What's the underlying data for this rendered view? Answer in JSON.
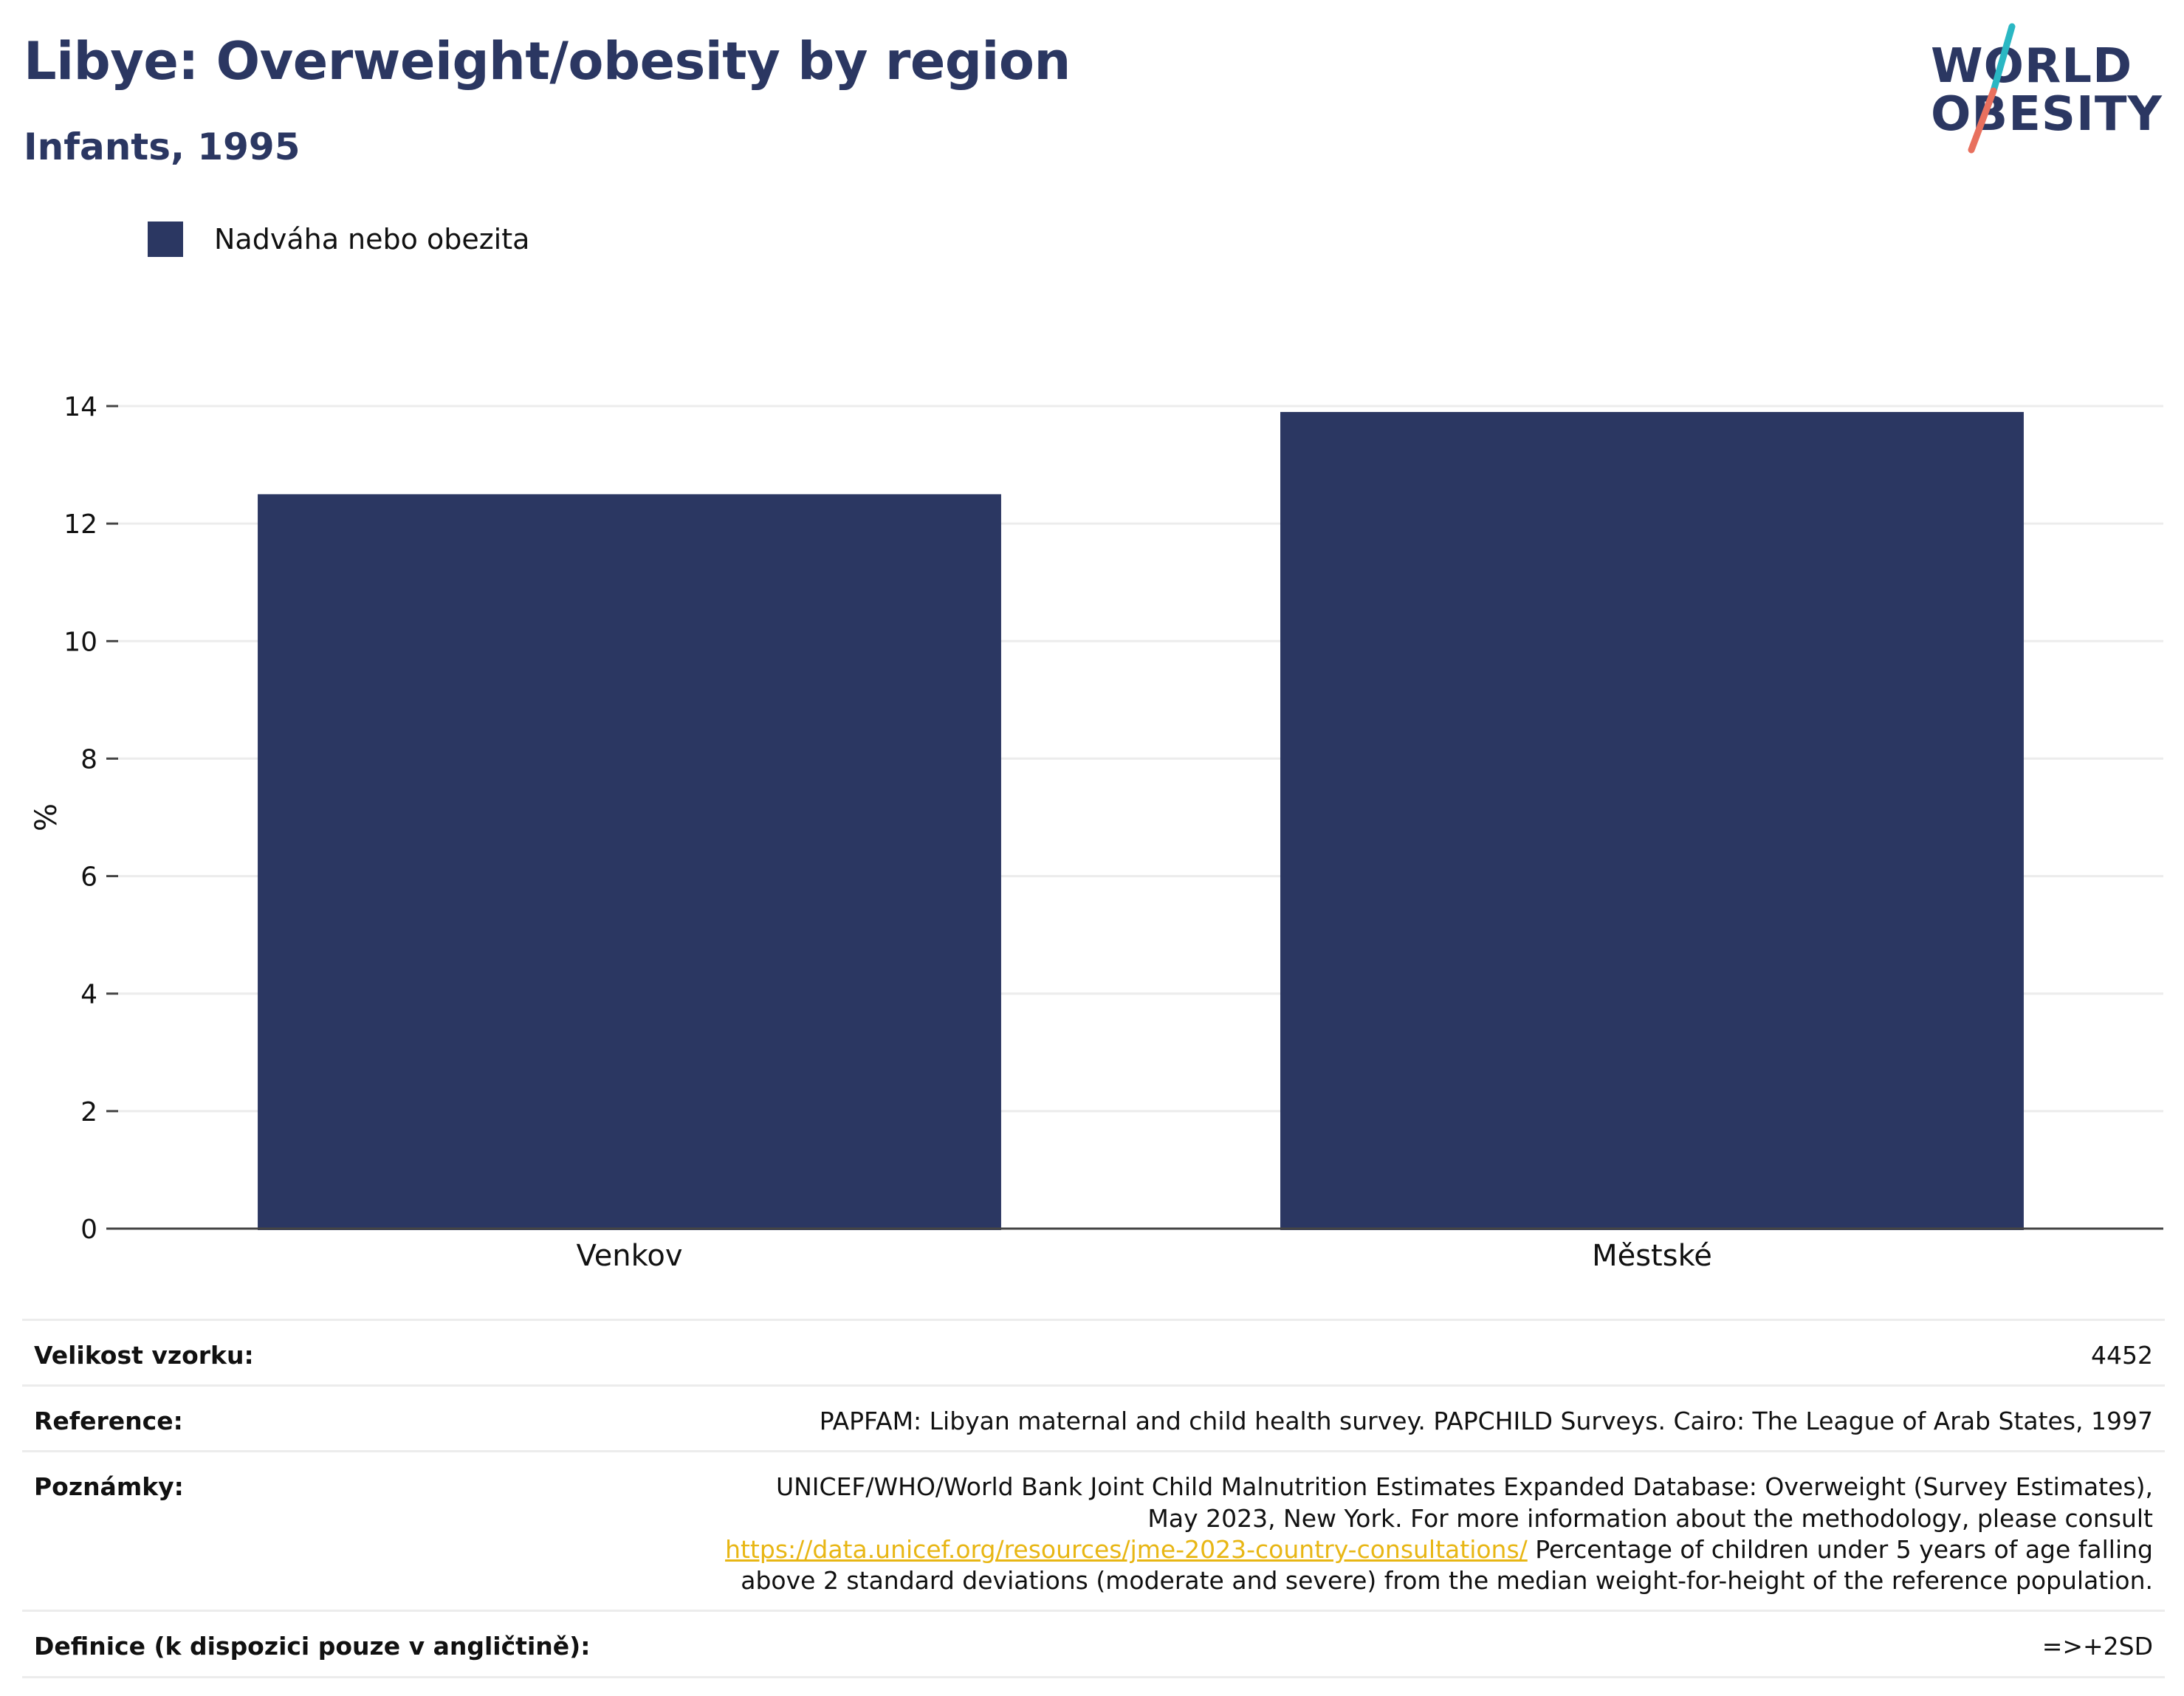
{
  "header": {
    "title": "Libye: Overweight/obesity by region",
    "subtitle": "Infants, 1995"
  },
  "logo": {
    "line1": "WORLD",
    "line2": "OBESITY",
    "colors": {
      "text": "#2b3762",
      "slash_top": "#2ab7c3",
      "slash_bottom": "#e8705e"
    }
  },
  "colors": {
    "bar": "#2b3762",
    "axis": "#444444",
    "grid": "#ececec",
    "link": "#e8b614"
  },
  "chart_data": {
    "type": "bar",
    "categories": [
      "Venkov",
      "Městské"
    ],
    "series": [
      {
        "name": "Nadváha nebo obezita",
        "values": [
          12.5,
          13.9
        ]
      }
    ],
    "ylabel": "%",
    "ylim": [
      0,
      14.2
    ],
    "yticks": [
      0,
      2,
      4,
      6,
      8,
      10,
      12,
      14
    ],
    "grid": true,
    "legend": "top-left"
  },
  "meta": [
    {
      "label": "Velikost vzorku:",
      "value": "4452"
    },
    {
      "label": "Reference:",
      "value": "PAPFAM: Libyan maternal and child health survey. PAPCHILD Surveys. Cairo: The League of Arab States, 1997"
    },
    {
      "label": "Poznámky:",
      "text_before": "UNICEF/WHO/World Bank Joint Child Malnutrition Estimates Expanded Database: Overweight (Survey Estimates), May 2023, New York. For more information about the methodology, please consult ",
      "link": "https://data.unicef.org/resources/jme-2023-country-consultations/",
      "text_after": " Percentage of children under 5 years of age falling above 2 standard deviations (moderate and severe) from the median weight-for-height of the reference population."
    },
    {
      "label": "Definice (k dispozici pouze v angličtině):",
      "value": "=>+2SD"
    }
  ]
}
